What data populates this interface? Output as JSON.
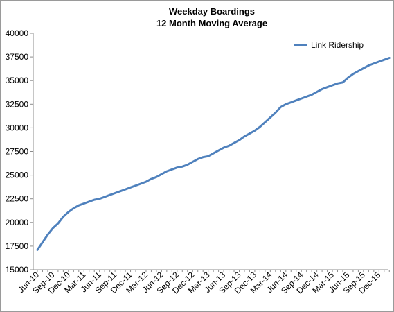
{
  "chart_data": {
    "type": "line",
    "title": "Weekday Boardings",
    "subtitle": "12 Month Moving Average",
    "xlabel": "",
    "ylabel": "",
    "ylim": [
      15000,
      40000
    ],
    "y_ticks": [
      15000,
      17500,
      20000,
      22500,
      25000,
      27500,
      30000,
      32500,
      35000,
      37500,
      40000
    ],
    "x_tick_labels": [
      "Jun-10",
      "Sep-10",
      "Dec-10",
      "Mar-11",
      "Jun-11",
      "Sep-11",
      "Dec-11",
      "Mar-12",
      "Jun-12",
      "Sep-12",
      "Dec-12",
      "Mar-13",
      "Jun-13",
      "Sep-13",
      "Dec-13",
      "Mar-14",
      "Jun-14",
      "Sep-14",
      "Dec-14",
      "Mar-15",
      "Jun-15",
      "Sep-15",
      "Dec-15"
    ],
    "grid": false,
    "legend": {
      "position": "top-right"
    },
    "series": [
      {
        "name": "Link Ridership",
        "color": "#4f81bd",
        "x": [
          "Jun-10",
          "Jul-10",
          "Aug-10",
          "Sep-10",
          "Oct-10",
          "Nov-10",
          "Dec-10",
          "Jan-11",
          "Feb-11",
          "Mar-11",
          "Apr-11",
          "May-11",
          "Jun-11",
          "Jul-11",
          "Aug-11",
          "Sep-11",
          "Oct-11",
          "Nov-11",
          "Dec-11",
          "Jan-12",
          "Feb-12",
          "Mar-12",
          "Apr-12",
          "May-12",
          "Jun-12",
          "Jul-12",
          "Aug-12",
          "Sep-12",
          "Oct-12",
          "Nov-12",
          "Dec-12",
          "Jan-13",
          "Feb-13",
          "Mar-13",
          "Apr-13",
          "May-13",
          "Jun-13",
          "Jul-13",
          "Aug-13",
          "Sep-13",
          "Oct-13",
          "Nov-13",
          "Dec-13",
          "Jan-14",
          "Feb-14",
          "Mar-14",
          "Apr-14",
          "May-14",
          "Jun-14",
          "Jul-14",
          "Aug-14",
          "Sep-14",
          "Oct-14",
          "Nov-14",
          "Dec-14",
          "Jan-15",
          "Feb-15",
          "Mar-15",
          "Apr-15",
          "May-15",
          "Jun-15",
          "Jul-15",
          "Aug-15",
          "Sep-15",
          "Oct-15",
          "Nov-15",
          "Dec-15",
          "Jan-16",
          "Feb-16"
        ],
        "values": [
          17100,
          17900,
          18700,
          19400,
          19900,
          20600,
          21100,
          21500,
          21800,
          22000,
          22200,
          22400,
          22500,
          22700,
          22900,
          23100,
          23300,
          23500,
          23700,
          23900,
          24100,
          24300,
          24600,
          24800,
          25100,
          25400,
          25600,
          25800,
          25900,
          26100,
          26400,
          26700,
          26900,
          27000,
          27300,
          27600,
          27900,
          28100,
          28400,
          28700,
          29100,
          29400,
          29700,
          30100,
          30600,
          31100,
          31600,
          32200,
          32500,
          32700,
          32900,
          33100,
          33300,
          33500,
          33800,
          34100,
          34300,
          34500,
          34700,
          34800,
          35300,
          35700,
          36000,
          36300,
          36600,
          36800,
          37000,
          37200,
          37400
        ]
      }
    ]
  }
}
